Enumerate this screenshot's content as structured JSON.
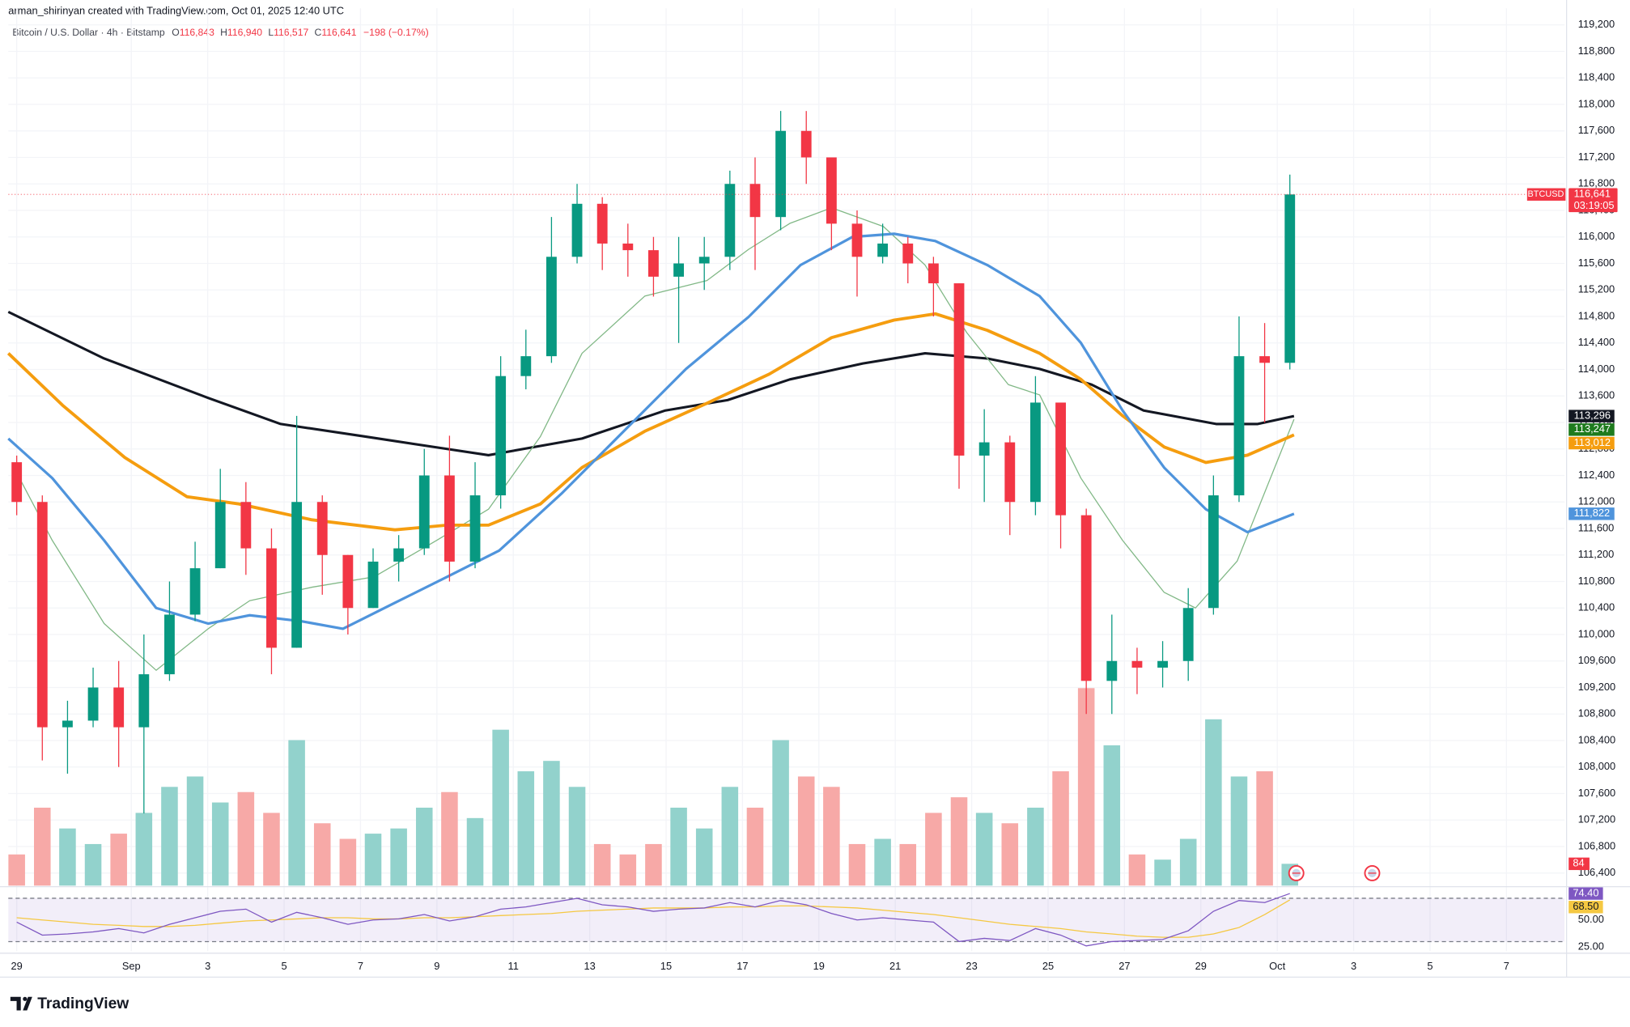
{
  "header": "arman_shirinyan created with TradingView.com, Oct 01, 2025 12:40 UTC",
  "brand": "TradingView",
  "chart_data": {
    "type": "candlestick",
    "title": "Bitcoin / U.S. Dollar · 4h · Bitstamp",
    "ohlc_letters": [
      "O",
      "H",
      "L",
      "C"
    ],
    "ohlc_values": [
      "116,843",
      "116,940",
      "116,517",
      "116,641"
    ],
    "change": "−198 (−0.17%)",
    "symbol": "BTCUSD",
    "close_label": "116,641",
    "countdown": "03:19:05",
    "up_color": "#089981",
    "down_color": "#f23645",
    "up_volume_color": "#92d2cc",
    "down_volume_color": "#f7a9a7",
    "x": [
      0,
      0.67,
      1.33,
      2,
      2.67,
      3.33,
      4,
      4.67,
      5.33,
      6,
      6.67,
      7.33,
      8,
      8.67,
      9.33,
      10,
      10.67,
      11.33,
      12,
      12.67,
      13.33,
      14,
      14.67,
      15.33,
      16,
      16.67,
      17.33,
      18,
      18.67,
      19.33,
      20,
      20.67,
      21.33,
      22,
      22.67,
      23.33,
      24,
      24.67,
      25.33,
      26,
      26.67,
      27.33,
      28,
      28.67,
      29.33,
      30,
      30.67,
      31.33,
      32,
      32.67,
      33.33
    ],
    "open": [
      112600,
      112000,
      108600,
      108700,
      109200,
      108600,
      109400,
      110300,
      111000,
      112000,
      111300,
      109800,
      112000,
      111200,
      110400,
      111100,
      111300,
      112400,
      111100,
      112100,
      113900,
      114200,
      115700,
      116500,
      115900,
      115800,
      115400,
      115600,
      115700,
      116800,
      116300,
      117600,
      117200,
      116200,
      115700,
      115900,
      115600,
      115300,
      112700,
      112900,
      112000,
      113500,
      111800,
      109300,
      109600,
      109500,
      109600,
      110400,
      112100,
      114200,
      114100
    ],
    "high": [
      112700,
      112100,
      109000,
      109500,
      109600,
      110000,
      110800,
      111400,
      112500,
      112300,
      111600,
      113300,
      112100,
      111200,
      111300,
      111500,
      112800,
      113000,
      112600,
      114200,
      114600,
      116300,
      116800,
      116600,
      116200,
      116000,
      116000,
      116000,
      117000,
      117200,
      117900,
      117900,
      117100,
      116400,
      116200,
      116000,
      115700,
      115300,
      113400,
      113000,
      113900,
      113500,
      111900,
      110300,
      109800,
      109900,
      110700,
      112400,
      114800,
      114700,
      116940
    ],
    "low": [
      111800,
      108100,
      107900,
      108600,
      108000,
      107300,
      109300,
      110200,
      111000,
      110900,
      109400,
      109800,
      110600,
      110000,
      110400,
      110800,
      111200,
      110800,
      111000,
      111900,
      113700,
      114100,
      115600,
      115500,
      115400,
      115100,
      114400,
      115200,
      115500,
      115500,
      116100,
      116800,
      115800,
      115100,
      115600,
      115300,
      114800,
      112200,
      112000,
      111500,
      111800,
      111300,
      108800,
      108800,
      109100,
      109200,
      109300,
      110300,
      112000,
      113200,
      114000
    ],
    "close": [
      112000,
      108600,
      108700,
      109200,
      108600,
      109400,
      110300,
      111000,
      112000,
      111300,
      109800,
      112000,
      111200,
      110400,
      111100,
      111300,
      112400,
      111100,
      112100,
      113900,
      114200,
      115700,
      116500,
      115900,
      115800,
      115400,
      115600,
      115700,
      116800,
      116300,
      117600,
      117200,
      116200,
      115700,
      115900,
      115600,
      115300,
      112700,
      112900,
      112000,
      113500,
      111800,
      109300,
      109600,
      109500,
      109600,
      110400,
      112100,
      114200,
      114100,
      116641
    ],
    "volume": [
      120,
      300,
      220,
      160,
      200,
      280,
      380,
      420,
      320,
      360,
      280,
      560,
      240,
      180,
      200,
      220,
      300,
      360,
      260,
      600,
      440,
      480,
      380,
      160,
      120,
      160,
      300,
      220,
      380,
      300,
      560,
      420,
      380,
      160,
      180,
      160,
      280,
      340,
      280,
      240,
      300,
      440,
      760,
      540,
      120,
      100,
      180,
      640,
      420,
      440,
      84
    ],
    "volume_label": "84",
    "volume_ylim": [
      0,
      800
    ],
    "ma": [
      {
        "color": "#131722",
        "label_color": "#131722",
        "width": 2.4,
        "x": [
          -0.22,
          2.29,
          5.01,
          6.91,
          9.09,
          11.27,
          12.35,
          14.8,
          16.98,
          18.61,
          20.24,
          22.15,
          23.78,
          25.41,
          26.78,
          28.14,
          29.5,
          31.4,
          32.49,
          33.44
        ],
        "values": [
          114870,
          114165,
          113570,
          113177,
          112990,
          112800,
          112706,
          112957,
          113380,
          113537,
          113850,
          114090,
          114243,
          114165,
          114008,
          113772,
          113380,
          113177,
          113177,
          113296
        ],
        "value_label": "113,296"
      },
      {
        "color": "#81b886",
        "label_color": "#1e7b1e",
        "width": 1,
        "x": [
          0,
          0.93,
          2.29,
          3.65,
          5.01,
          6.1,
          7.73,
          9.36,
          10.99,
          12.35,
          13.71,
          14.8,
          16.44,
          18.07,
          19.16,
          20.24,
          21.33,
          22.69,
          23.78,
          24.87,
          25.96,
          26.78,
          27.86,
          28.95,
          30.04,
          30.86,
          31.95,
          33.44
        ],
        "values": [
          112440,
          111420,
          110165,
          109460,
          110086,
          110510,
          110714,
          110870,
          111420,
          111890,
          112990,
          114243,
          115106,
          115341,
          115812,
          116204,
          116440,
          116157,
          115576,
          114557,
          113772,
          113616,
          112360,
          111420,
          110635,
          110400,
          111107,
          113247
        ],
        "value_label": "113,247"
      },
      {
        "color": "#f59d0f",
        "label_color": "#f59d0f",
        "width": 3,
        "x": [
          -0.22,
          1.2,
          2.83,
          4.46,
          5.82,
          7.73,
          9.9,
          11.27,
          12.35,
          13.71,
          14.8,
          16.44,
          18.07,
          19.7,
          21.33,
          22.97,
          24.05,
          25.41,
          26.78,
          27.86,
          28.95,
          30.04,
          31.13,
          32.22,
          33.44
        ],
        "values": [
          114243,
          113459,
          112670,
          112078,
          111970,
          111730,
          111580,
          111650,
          111650,
          111970,
          112520,
          113067,
          113490,
          113930,
          114480,
          114745,
          114840,
          114590,
          114243,
          113850,
          113300,
          112830,
          112596,
          112706,
          113012
        ],
        "value_label": "113,012"
      },
      {
        "color": "#4f94dc",
        "label_color": "#4f94dc",
        "width": 2.5,
        "x": [
          -0.22,
          0.93,
          2.29,
          3.65,
          5.01,
          6.1,
          7.46,
          8.54,
          9.9,
          11.27,
          12.63,
          14.26,
          15.89,
          17.52,
          19.16,
          20.52,
          21.88,
          22.97,
          24.05,
          25.41,
          26.78,
          27.86,
          28.95,
          30.04,
          31.13,
          32.22,
          33.44
        ],
        "values": [
          112957,
          112360,
          111420,
          110400,
          110165,
          110290,
          110200,
          110086,
          110478,
          110870,
          111266,
          112126,
          113067,
          114008,
          114792,
          115576,
          116000,
          116047,
          115937,
          115576,
          115106,
          114400,
          113380,
          112518,
          111890,
          111545,
          111822
        ],
        "value_label": "111,822"
      }
    ],
    "xlim": [
      -0.22,
      40.52
    ],
    "xticks": [
      {
        "value": 0,
        "label": "29"
      },
      {
        "value": 3,
        "label": "Sep"
      },
      {
        "value": 5,
        "label": "3"
      },
      {
        "value": 7,
        "label": "5"
      },
      {
        "value": 9,
        "label": "7"
      },
      {
        "value": 11,
        "label": "9"
      },
      {
        "value": 13,
        "label": "11"
      },
      {
        "value": 15,
        "label": "13"
      },
      {
        "value": 17,
        "label": "15"
      },
      {
        "value": 19,
        "label": "17"
      },
      {
        "value": 21,
        "label": "19"
      },
      {
        "value": 23,
        "label": "21"
      },
      {
        "value": 25,
        "label": "23"
      },
      {
        "value": 27,
        "label": "25"
      },
      {
        "value": 29,
        "label": "27"
      },
      {
        "value": 31,
        "label": "29"
      },
      {
        "value": 33,
        "label": "Oct"
      },
      {
        "value": 35,
        "label": "3"
      },
      {
        "value": 37,
        "label": "5"
      },
      {
        "value": 39,
        "label": "7"
      }
    ],
    "ylim": [
      106210,
      119450
    ],
    "yticks": [
      {
        "value": 106400,
        "label": "106,400"
      },
      {
        "value": 106800,
        "label": "106,800"
      },
      {
        "value": 107200,
        "label": "107,200"
      },
      {
        "value": 107600,
        "label": "107,600"
      },
      {
        "value": 108000,
        "label": "108,000"
      },
      {
        "value": 108400,
        "label": "108,400"
      },
      {
        "value": 108800,
        "label": "108,800"
      },
      {
        "value": 109200,
        "label": "109,200"
      },
      {
        "value": 109600,
        "label": "109,600"
      },
      {
        "value": 110000,
        "label": "110,000"
      },
      {
        "value": 110400,
        "label": "110,400"
      },
      {
        "value": 110800,
        "label": "110,800"
      },
      {
        "value": 111200,
        "label": "111,200"
      },
      {
        "value": 111600,
        "label": "111,600"
      },
      {
        "value": 112000,
        "label": "112,000"
      },
      {
        "value": 112400,
        "label": "112,400"
      },
      {
        "value": 112800,
        "label": "112,800"
      },
      {
        "value": 113200,
        "label": "113,200"
      },
      {
        "value": 113600,
        "label": "113,600"
      },
      {
        "value": 114000,
        "label": "114,000"
      },
      {
        "value": 114400,
        "label": "114,400"
      },
      {
        "value": 114800,
        "label": "114,800"
      },
      {
        "value": 115200,
        "label": "115,200"
      },
      {
        "value": 115600,
        "label": "115,600"
      },
      {
        "value": 116000,
        "label": "116,000"
      },
      {
        "value": 116400,
        "label": "116,400"
      },
      {
        "value": 116800,
        "label": "116,800"
      },
      {
        "value": 117200,
        "label": "117,200"
      },
      {
        "value": 117600,
        "label": "117,600"
      },
      {
        "value": 118000,
        "label": "118,000"
      },
      {
        "value": 118400,
        "label": "118,400"
      },
      {
        "value": 118800,
        "label": "118,800"
      },
      {
        "value": 119200,
        "label": "119,200"
      }
    ],
    "rsi": {
      "color": "#7e57c2",
      "ma_color": "#f5c842",
      "values": [
        48,
        36,
        37,
        39,
        42,
        38,
        46,
        52,
        58,
        60,
        48,
        57,
        52,
        46,
        50,
        51,
        55,
        49,
        53,
        60,
        62,
        66,
        70,
        64,
        62,
        58,
        60,
        61,
        66,
        62,
        68,
        64,
        56,
        50,
        52,
        50,
        48,
        30,
        33,
        31,
        42,
        36,
        26,
        30,
        31,
        32,
        40,
        58,
        68,
        66,
        74.4
      ],
      "value_label": "74.40",
      "ma_values": [
        52,
        50,
        48,
        46,
        45,
        44,
        44,
        45,
        47,
        49,
        50,
        51,
        52,
        52,
        51,
        51,
        52,
        52,
        53,
        54,
        55,
        56,
        58,
        59,
        60,
        61,
        61,
        61,
        62,
        62,
        63,
        63,
        62,
        61,
        59,
        57,
        55,
        52,
        49,
        46,
        44,
        42,
        39,
        37,
        35,
        34,
        34,
        37,
        43,
        55,
        68.5
      ],
      "ma_value_label": "68.50",
      "ylim": [
        21.2,
        78.8
      ],
      "band": [
        30,
        70
      ],
      "yticks": [
        {
          "value": 50,
          "label": "50.00"
        },
        {
          "value": 25,
          "label": "25.00"
        }
      ]
    }
  }
}
